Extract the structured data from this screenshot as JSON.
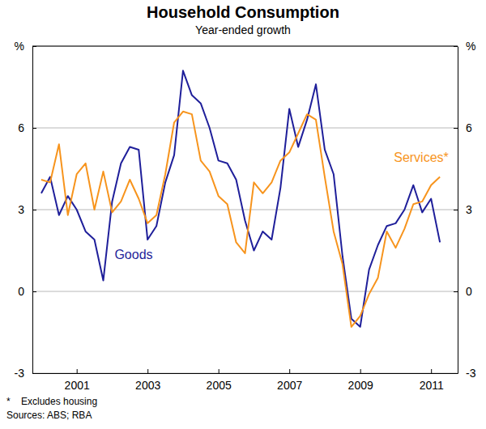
{
  "chart_data": {
    "type": "line",
    "title": "Household Consumption",
    "subtitle": "Year-ended growth",
    "x": [
      2000,
      2000.25,
      2000.5,
      2000.75,
      2001,
      2001.25,
      2001.5,
      2001.75,
      2002,
      2002.25,
      2002.5,
      2002.75,
      2003,
      2003.25,
      2003.5,
      2003.75,
      2004,
      2004.25,
      2004.5,
      2004.75,
      2005,
      2005.25,
      2005.5,
      2005.75,
      2006,
      2006.25,
      2006.5,
      2006.75,
      2007,
      2007.25,
      2007.5,
      2007.75,
      2008,
      2008.25,
      2008.5,
      2008.75,
      2009,
      2009.25,
      2009.5,
      2009.75,
      2010,
      2010.25,
      2010.5,
      2010.75,
      2011,
      2011.25
    ],
    "series": [
      {
        "name": "Goods",
        "color": "#1f1f9a",
        "values": [
          3.6,
          4.2,
          2.8,
          3.5,
          3.0,
          2.2,
          1.9,
          0.4,
          3.3,
          4.7,
          5.3,
          5.2,
          1.9,
          2.4,
          4.0,
          5.0,
          8.1,
          7.2,
          6.9,
          6.0,
          4.8,
          4.7,
          4.1,
          2.6,
          1.5,
          2.2,
          1.9,
          3.8,
          6.7,
          5.3,
          6.3,
          7.6,
          5.2,
          4.3,
          1.3,
          -1.0,
          -1.3,
          0.8,
          1.7,
          2.4,
          2.5,
          3.0,
          3.9,
          2.9,
          3.4,
          1.8
        ]
      },
      {
        "name": "Services*",
        "color": "#f7941d",
        "values": [
          4.1,
          4.0,
          5.4,
          2.8,
          4.3,
          4.7,
          3.0,
          4.4,
          2.9,
          3.3,
          4.1,
          3.4,
          2.5,
          2.8,
          4.3,
          6.2,
          6.6,
          6.5,
          4.8,
          4.4,
          3.5,
          3.2,
          1.8,
          1.4,
          4.0,
          3.6,
          4.0,
          4.8,
          5.1,
          5.8,
          6.5,
          6.3,
          4.2,
          2.2,
          1.0,
          -1.3,
          -0.9,
          -0.1,
          0.5,
          2.2,
          1.6,
          2.3,
          3.2,
          3.3,
          3.9,
          4.2
        ]
      }
    ],
    "xlim": [
      1999.75,
      2011.75
    ],
    "xticks": [
      2001,
      2003,
      2005,
      2007,
      2009,
      2011
    ],
    "ylim": [
      -3,
      9
    ],
    "yticks": [
      -3,
      0,
      3,
      6,
      {
        "value": 9,
        "label": "%"
      }
    ],
    "grid": true,
    "footnotes": [
      "*    Excludes housing",
      "Sources: ABS; RBA"
    ]
  }
}
